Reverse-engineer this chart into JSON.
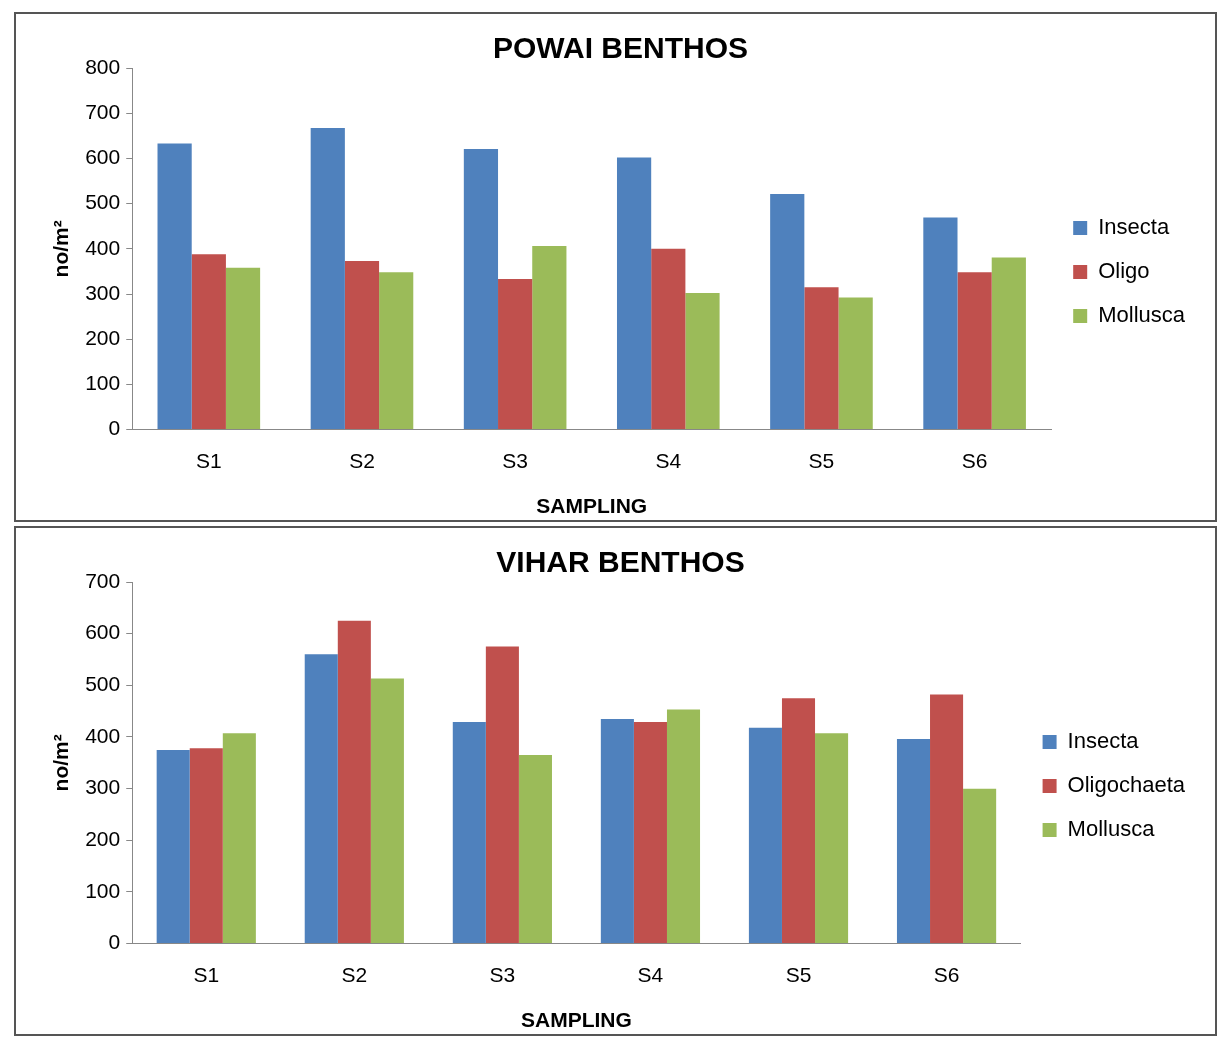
{
  "chart_data": [
    {
      "type": "bar",
      "title": "POWAI BENTHOS",
      "xlabel": "SAMPLING",
      "ylabel": "no/m²",
      "categories": [
        "S1",
        "S2",
        "S3",
        "S4",
        "S5",
        "S6"
      ],
      "series": [
        {
          "name": "Insecta",
          "color": "#4f81bd",
          "values": [
            633,
            667,
            621,
            602,
            521,
            469
          ]
        },
        {
          "name": "Oligo",
          "color": "#c0504d",
          "values": [
            388,
            373,
            333,
            400,
            315,
            348
          ]
        },
        {
          "name": "Mollusca",
          "color": "#9bbb59",
          "values": [
            358,
            348,
            406,
            302,
            292,
            381
          ]
        }
      ],
      "ylim": [
        0,
        800
      ],
      "yticks": [
        0,
        100,
        200,
        300,
        400,
        500,
        600,
        700,
        800
      ],
      "grid": false,
      "legend": "right"
    },
    {
      "type": "bar",
      "title": "VIHAR BENTHOS",
      "xlabel": "SAMPLING",
      "ylabel": "no/m²",
      "categories": [
        "S1",
        "S2",
        "S3",
        "S4",
        "S5",
        "S6"
      ],
      "series": [
        {
          "name": "Insecta",
          "color": "#4f81bd",
          "values": [
            375,
            560,
            429,
            435,
            418,
            396
          ]
        },
        {
          "name": "Oligochaeta",
          "color": "#c0504d",
          "values": [
            378,
            625,
            575,
            429,
            475,
            482
          ]
        },
        {
          "name": "Mollusca",
          "color": "#9bbb59",
          "values": [
            407,
            513,
            365,
            453,
            407,
            300
          ]
        }
      ],
      "ylim": [
        0,
        700
      ],
      "yticks": [
        0,
        100,
        200,
        300,
        400,
        500,
        600,
        700
      ],
      "grid": false,
      "legend": "right"
    }
  ]
}
